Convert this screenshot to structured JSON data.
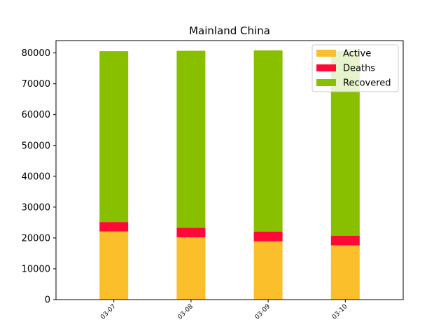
{
  "chart_data": {
    "type": "bar",
    "stacked": true,
    "title": "Mainland China",
    "xlabel": "",
    "ylabel": "",
    "categories": [
      "03-07",
      "03-08",
      "03-09",
      "03-10"
    ],
    "series": [
      {
        "name": "Active",
        "color": "#fbbf2b",
        "values": [
          22100,
          20200,
          18900,
          17600
        ]
      },
      {
        "name": "Deaths",
        "color": "#ff0a37",
        "values": [
          3070,
          3100,
          3120,
          3140
        ]
      },
      {
        "name": "Recovered",
        "color": "#88c000",
        "values": [
          55400,
          57400,
          58800,
          60000
        ]
      }
    ],
    "ylim": [
      0,
      84000
    ],
    "yticks": [
      0,
      10000,
      20000,
      30000,
      40000,
      50000,
      60000,
      70000,
      80000
    ],
    "grid": false,
    "legend": "top-right"
  }
}
